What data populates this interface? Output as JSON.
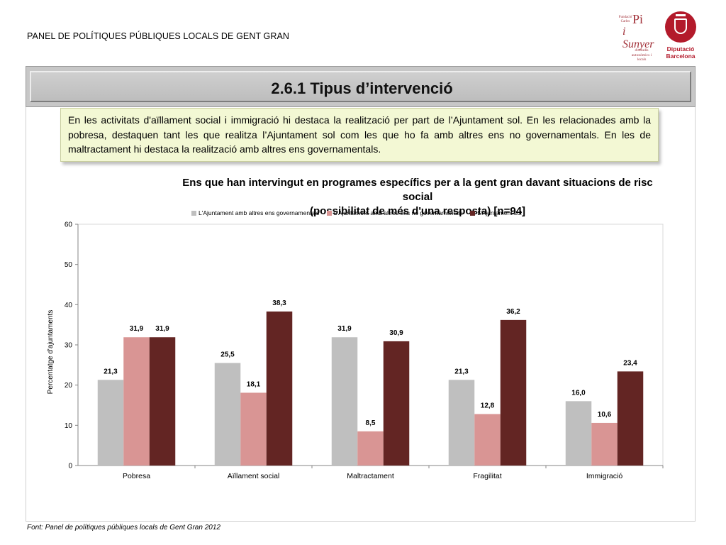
{
  "header": {
    "title": "PANEL DE POLÍTIQUES PÚBLIQUES LOCALS DE GENT GRAN"
  },
  "logos": {
    "pisunyer": {
      "small": "Fundació Carles",
      "big1": "Pi",
      "big2": "i Sunyer",
      "sub": "d'estudis autonòmics i locals"
    },
    "diputacio": {
      "line1": "Diputació",
      "line2": "Barcelona"
    }
  },
  "section": {
    "title": "2.6.1 Tipus d’intervenció"
  },
  "note": {
    "text": "En les activitats d'aïllament social i immigració hi destaca la realització per part de l’Ajuntament sol. En les relacionades amb la pobresa, destaquen tant les que realitza l’Ajuntament sol com les que ho fa amb altres ens no governamentals. En les de maltractament hi destaca la realització amb altres ens governamentals."
  },
  "chart_data": {
    "type": "bar",
    "title": "Ens que han intervingut en programes específics per a la gent gran davant situacions de risc social",
    "subtitle": "(possibilitat de més d'una resposta) [n=94]",
    "ylabel": "Percentatge d'ajuntaments",
    "xlabel": "",
    "ylim": [
      0,
      60
    ],
    "yticks": [
      0,
      10,
      20,
      30,
      40,
      50,
      60
    ],
    "categories": [
      "Pobresa",
      "Aïllament social",
      "Maltractament",
      "Fragilitat",
      "Immigració"
    ],
    "series": [
      {
        "name": "L'Ajuntament amb altres ens governamentals",
        "color": "#bfbfbf",
        "values": [
          21.3,
          25.5,
          31.9,
          21.3,
          16.0
        ],
        "labels": [
          "21,3",
          "25,5",
          "31,9",
          "21,3",
          "16,0"
        ]
      },
      {
        "name": "L'Ajuntament amb altres ens no governamentals",
        "color": "#d99594",
        "values": [
          31.9,
          18.1,
          8.5,
          12.8,
          10.6
        ],
        "labels": [
          "31,9",
          "18,1",
          "8,5",
          "12,8",
          "10,6"
        ]
      },
      {
        "name": "L'Ajuntament sol",
        "color": "#632523",
        "values": [
          31.9,
          38.3,
          30.9,
          36.2,
          23.4
        ],
        "labels": [
          "31,9",
          "38,3",
          "30,9",
          "36,2",
          "23,4"
        ]
      }
    ],
    "grid": false,
    "legend_position": "top"
  },
  "footer": {
    "source": "Font: Panel de  polítiques públiques locals de Gent Gran 2012"
  }
}
